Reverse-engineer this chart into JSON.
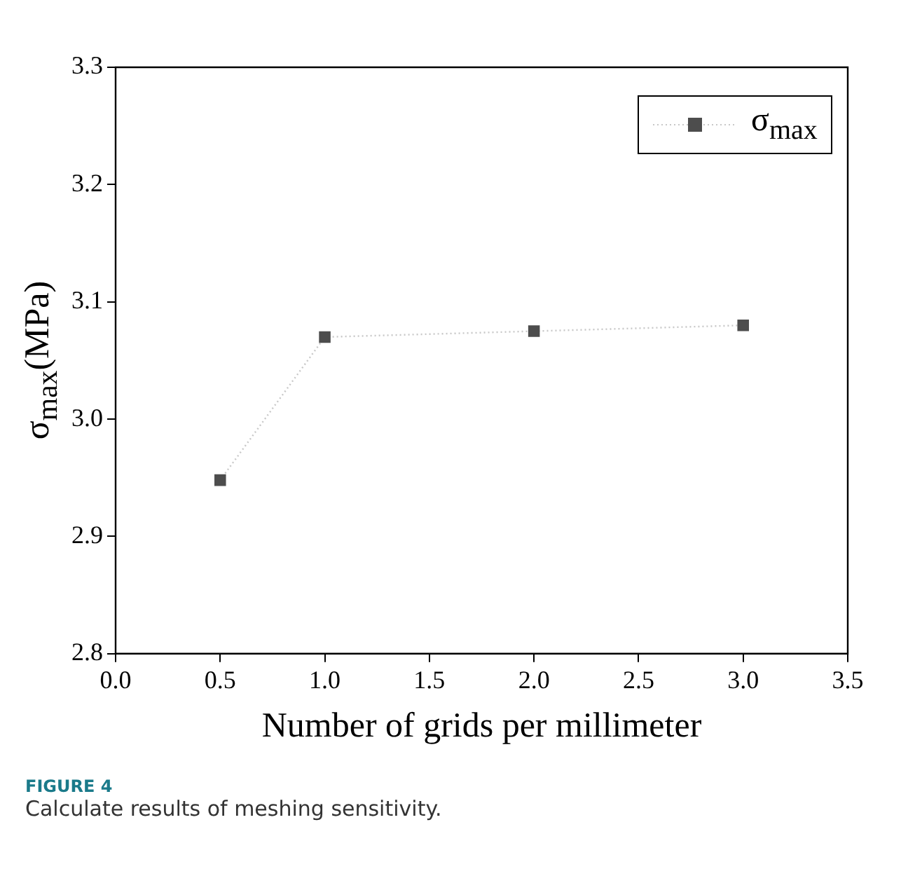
{
  "chart_data": {
    "type": "line",
    "xlabel": "Number of grids per millimeter",
    "ylabel": "σ$_{max}$(MPa)",
    "x": [
      0.5,
      1.0,
      2.0,
      3.0
    ],
    "series": [
      {
        "name": "σ$_{max}$",
        "color": "#4d4d4d",
        "values": [
          2.948,
          3.07,
          3.075,
          3.08
        ]
      }
    ],
    "xlim": [
      0,
      3.5
    ],
    "xticks": [
      {
        "value": 0,
        "label": "0.0"
      },
      0.5,
      {
        "value": 1,
        "label": "1.0"
      },
      1.5,
      {
        "value": 2,
        "label": "2.0"
      },
      2.5,
      {
        "value": 3,
        "label": "3.0"
      },
      3.5
    ],
    "ylim": [
      2.8,
      3.3
    ],
    "yticks": [
      2.8,
      2.9,
      {
        "value": 3,
        "label": "3.0"
      },
      3.1,
      3.2,
      3.3
    ],
    "grid": false,
    "legend": "top right",
    "marker": "square",
    "line_style": "dotted",
    "annotations": [
      "FIGURE 4",
      "Calculate results of meshing sensitivity."
    ]
  }
}
